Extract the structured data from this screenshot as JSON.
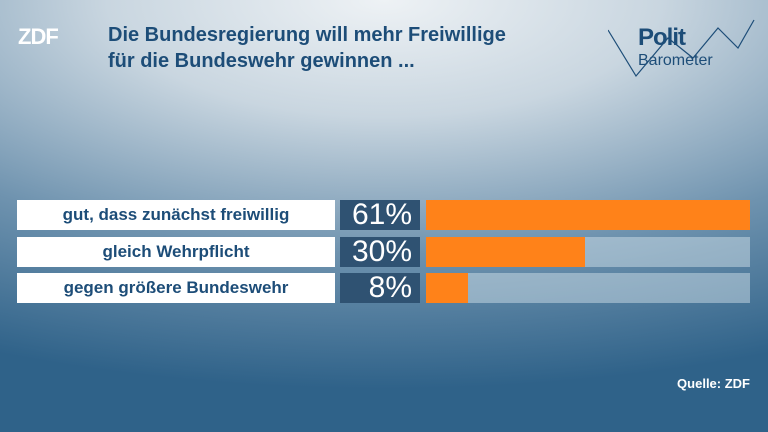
{
  "chart_data": {
    "type": "hbar",
    "logo": "ZDF",
    "brand": [
      "Polit",
      "Barometer"
    ],
    "title": [
      "Die Bundesregierung will mehr Freiwillige",
      "für die Bundeswehr gewinnen ..."
    ],
    "categories": [
      "gut, dass zunächst freiwillig",
      "gleich Wehrpflicht",
      "gegen größere Bundeswehr"
    ],
    "values": [
      61,
      30,
      8
    ],
    "value_labels": [
      "61%",
      "30%",
      "8%"
    ],
    "color": "#ff8219",
    "source": "Quelle: ZDF"
  }
}
